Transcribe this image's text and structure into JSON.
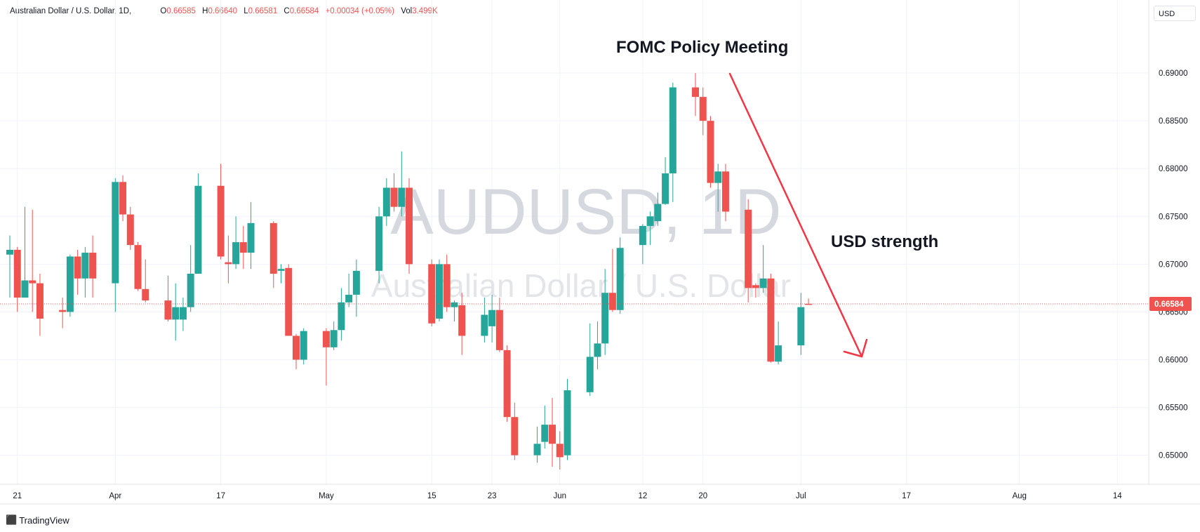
{
  "header": {
    "symbol": "Australian Dollar / U.S. Dollar, 1D,",
    "o_label": "O",
    "o_value": "0.66585",
    "h_label": "H",
    "h_value": "0.66640",
    "l_label": "L",
    "l_value": "0.66581",
    "c_label": "C",
    "c_value": "0.66584",
    "change": "+0.00034 (+0.05%)",
    "vol_label": "Vol",
    "vol_value": "3.499K"
  },
  "currency_button": "USD",
  "brand": "TradingView",
  "colors": {
    "up": "#26a69a",
    "down": "#ef5350",
    "annotation": "#f23645",
    "grid": "#f0f3fa",
    "watermark": "#d1d4dc"
  },
  "chart_data": {
    "type": "candlestick",
    "watermark": {
      "symbol": "AUDUSD, 1D",
      "description": "Australian Dollar / U.S. Dollar"
    },
    "last_price_label": "0.66584",
    "y_axis": {
      "range": [
        0.6488,
        0.6903
      ],
      "ticks": [
        "0.69000",
        "0.68500",
        "0.68000",
        "0.67500",
        "0.67000",
        "0.66500",
        "0.66000",
        "0.65500",
        "0.65000"
      ]
    },
    "x_axis": {
      "range": [
        "2023-03-20",
        "2023-08-15"
      ],
      "ticks": [
        {
          "label": "21",
          "date": "2023-03-21"
        },
        {
          "label": "Apr",
          "date": "2023-04-03"
        },
        {
          "label": "17",
          "date": "2023-04-17"
        },
        {
          "label": "May",
          "date": "2023-05-01"
        },
        {
          "label": "15",
          "date": "2023-05-15"
        },
        {
          "label": "23",
          "date": "2023-05-23"
        },
        {
          "label": "Jun",
          "date": "2023-06-01"
        },
        {
          "label": "12",
          "date": "2023-06-12"
        },
        {
          "label": "20",
          "date": "2023-06-20"
        },
        {
          "label": "Jul",
          "date": "2023-07-03"
        },
        {
          "label": "17",
          "date": "2023-07-17"
        },
        {
          "label": "Aug",
          "date": "2023-08-01"
        },
        {
          "label": "14",
          "date": "2023-08-14"
        }
      ]
    },
    "candles": [
      {
        "date": "2023-03-20",
        "o": 0.671,
        "h": 0.673,
        "l": 0.6665,
        "c": 0.6715
      },
      {
        "date": "2023-03-21",
        "o": 0.6715,
        "h": 0.6718,
        "l": 0.665,
        "c": 0.6665
      },
      {
        "date": "2023-03-22",
        "o": 0.6665,
        "h": 0.676,
        "l": 0.6665,
        "c": 0.6683
      },
      {
        "date": "2023-03-23",
        "o": 0.6683,
        "h": 0.6757,
        "l": 0.665,
        "c": 0.668
      },
      {
        "date": "2023-03-24",
        "o": 0.668,
        "h": 0.669,
        "l": 0.6625,
        "c": 0.6643
      },
      {
        "date": "2023-03-27",
        "o": 0.6652,
        "h": 0.6665,
        "l": 0.6633,
        "c": 0.665
      },
      {
        "date": "2023-03-28",
        "o": 0.665,
        "h": 0.671,
        "l": 0.6645,
        "c": 0.6708
      },
      {
        "date": "2023-03-29",
        "o": 0.6708,
        "h": 0.6715,
        "l": 0.6668,
        "c": 0.6685
      },
      {
        "date": "2023-03-30",
        "o": 0.6685,
        "h": 0.6718,
        "l": 0.6665,
        "c": 0.6712
      },
      {
        "date": "2023-03-31",
        "o": 0.6712,
        "h": 0.673,
        "l": 0.6665,
        "c": 0.6685
      },
      {
        "date": "2023-04-03",
        "o": 0.668,
        "h": 0.679,
        "l": 0.665,
        "c": 0.6786
      },
      {
        "date": "2023-04-04",
        "o": 0.6786,
        "h": 0.6793,
        "l": 0.6745,
        "c": 0.6752
      },
      {
        "date": "2023-04-05",
        "o": 0.6752,
        "h": 0.676,
        "l": 0.6715,
        "c": 0.672
      },
      {
        "date": "2023-04-06",
        "o": 0.672,
        "h": 0.6723,
        "l": 0.6672,
        "c": 0.6674
      },
      {
        "date": "2023-04-07",
        "o": 0.6674,
        "h": 0.6705,
        "l": 0.666,
        "c": 0.6662
      },
      {
        "date": "2023-04-10",
        "o": 0.6662,
        "h": 0.6688,
        "l": 0.664,
        "c": 0.6642
      },
      {
        "date": "2023-04-11",
        "o": 0.6642,
        "h": 0.668,
        "l": 0.662,
        "c": 0.6655
      },
      {
        "date": "2023-04-12",
        "o": 0.6642,
        "h": 0.6665,
        "l": 0.663,
        "c": 0.6655
      },
      {
        "date": "2023-04-13",
        "o": 0.6655,
        "h": 0.672,
        "l": 0.665,
        "c": 0.669
      },
      {
        "date": "2023-04-14",
        "o": 0.669,
        "h": 0.6795,
        "l": 0.669,
        "c": 0.6782
      },
      {
        "date": "2023-04-17",
        "o": 0.6782,
        "h": 0.6805,
        "l": 0.6705,
        "c": 0.6708
      },
      {
        "date": "2023-04-18",
        "o": 0.6702,
        "h": 0.673,
        "l": 0.668,
        "c": 0.67
      },
      {
        "date": "2023-04-19",
        "o": 0.67,
        "h": 0.675,
        "l": 0.6695,
        "c": 0.6723
      },
      {
        "date": "2023-04-20",
        "o": 0.6723,
        "h": 0.674,
        "l": 0.6695,
        "c": 0.6712
      },
      {
        "date": "2023-04-21",
        "o": 0.6712,
        "h": 0.6765,
        "l": 0.6695,
        "c": 0.6743
      },
      {
        "date": "2023-04-24",
        "o": 0.6743,
        "h": 0.6745,
        "l": 0.6675,
        "c": 0.669
      },
      {
        "date": "2023-04-25",
        "o": 0.6693,
        "h": 0.67,
        "l": 0.668,
        "c": 0.6695
      },
      {
        "date": "2023-04-26",
        "o": 0.6696,
        "h": 0.67,
        "l": 0.6625,
        "c": 0.6625
      },
      {
        "date": "2023-04-27",
        "o": 0.6625,
        "h": 0.6627,
        "l": 0.659,
        "c": 0.66
      },
      {
        "date": "2023-04-28",
        "o": 0.66,
        "h": 0.6633,
        "l": 0.6595,
        "c": 0.663
      },
      {
        "date": "2023-05-01",
        "o": 0.663,
        "h": 0.6633,
        "l": 0.6573,
        "c": 0.6613
      },
      {
        "date": "2023-05-02",
        "o": 0.6613,
        "h": 0.664,
        "l": 0.661,
        "c": 0.6631
      },
      {
        "date": "2023-05-03",
        "o": 0.6631,
        "h": 0.6675,
        "l": 0.662,
        "c": 0.666
      },
      {
        "date": "2023-05-04",
        "o": 0.666,
        "h": 0.669,
        "l": 0.6655,
        "c": 0.6668
      },
      {
        "date": "2023-05-05",
        "o": 0.6668,
        "h": 0.6705,
        "l": 0.6645,
        "c": 0.6693
      },
      {
        "date": "2023-05-08",
        "o": 0.6693,
        "h": 0.676,
        "l": 0.668,
        "c": 0.675
      },
      {
        "date": "2023-05-09",
        "o": 0.675,
        "h": 0.679,
        "l": 0.674,
        "c": 0.678
      },
      {
        "date": "2023-05-10",
        "o": 0.678,
        "h": 0.6795,
        "l": 0.6755,
        "c": 0.676
      },
      {
        "date": "2023-05-11",
        "o": 0.676,
        "h": 0.6818,
        "l": 0.675,
        "c": 0.678
      },
      {
        "date": "2023-05-12",
        "o": 0.678,
        "h": 0.679,
        "l": 0.669,
        "c": 0.67
      },
      {
        "date": "2023-05-15",
        "o": 0.67,
        "h": 0.6705,
        "l": 0.6635,
        "c": 0.6638
      },
      {
        "date": "2023-05-16",
        "o": 0.6643,
        "h": 0.6705,
        "l": 0.664,
        "c": 0.67
      },
      {
        "date": "2023-05-17",
        "o": 0.67,
        "h": 0.671,
        "l": 0.665,
        "c": 0.6655
      },
      {
        "date": "2023-05-18",
        "o": 0.6655,
        "h": 0.6662,
        "l": 0.664,
        "c": 0.666
      },
      {
        "date": "2023-05-19",
        "o": 0.6657,
        "h": 0.667,
        "l": 0.6605,
        "c": 0.6625
      },
      {
        "date": "2023-05-22",
        "o": 0.6625,
        "h": 0.6665,
        "l": 0.6618,
        "c": 0.6647
      },
      {
        "date": "2023-05-23",
        "o": 0.6635,
        "h": 0.6668,
        "l": 0.6618,
        "c": 0.6652
      },
      {
        "date": "2023-05-24",
        "o": 0.6652,
        "h": 0.6665,
        "l": 0.6608,
        "c": 0.661
      },
      {
        "date": "2023-05-25",
        "o": 0.661,
        "h": 0.6615,
        "l": 0.6535,
        "c": 0.654
      },
      {
        "date": "2023-05-26",
        "o": 0.654,
        "h": 0.6555,
        "l": 0.6495,
        "c": 0.65
      },
      {
        "date": "2023-05-29",
        "o": 0.65,
        "h": 0.653,
        "l": 0.6492,
        "c": 0.6512
      },
      {
        "date": "2023-05-30",
        "o": 0.6514,
        "h": 0.6552,
        "l": 0.6507,
        "c": 0.6532
      },
      {
        "date": "2023-05-31",
        "o": 0.6532,
        "h": 0.656,
        "l": 0.6488,
        "c": 0.6512
      },
      {
        "date": "2023-06-01",
        "o": 0.6512,
        "h": 0.6525,
        "l": 0.6485,
        "c": 0.6498
      },
      {
        "date": "2023-06-02",
        "o": 0.65,
        "h": 0.658,
        "l": 0.6495,
        "c": 0.6568
      },
      {
        "date": "2023-06-05",
        "o": 0.6566,
        "h": 0.6638,
        "l": 0.6562,
        "c": 0.6603
      },
      {
        "date": "2023-06-06",
        "o": 0.6603,
        "h": 0.664,
        "l": 0.659,
        "c": 0.6617
      },
      {
        "date": "2023-06-07",
        "o": 0.6617,
        "h": 0.6695,
        "l": 0.6605,
        "c": 0.667
      },
      {
        "date": "2023-06-08",
        "o": 0.667,
        "h": 0.6716,
        "l": 0.665,
        "c": 0.6652
      },
      {
        "date": "2023-06-09",
        "o": 0.6652,
        "h": 0.6728,
        "l": 0.6648,
        "c": 0.6717
      },
      {
        "date": "2023-06-12",
        "o": 0.672,
        "h": 0.6742,
        "l": 0.67,
        "c": 0.674
      },
      {
        "date": "2023-06-13",
        "o": 0.674,
        "h": 0.6755,
        "l": 0.672,
        "c": 0.675
      },
      {
        "date": "2023-06-14",
        "o": 0.6745,
        "h": 0.6775,
        "l": 0.674,
        "c": 0.6763
      },
      {
        "date": "2023-06-15",
        "o": 0.6763,
        "h": 0.6812,
        "l": 0.6762,
        "c": 0.6795
      },
      {
        "date": "2023-06-16",
        "o": 0.6795,
        "h": 0.689,
        "l": 0.6765,
        "c": 0.6885
      },
      {
        "date": "2023-06-19",
        "o": 0.6885,
        "h": 0.69,
        "l": 0.6855,
        "c": 0.6875
      },
      {
        "date": "2023-06-20",
        "o": 0.6875,
        "h": 0.6885,
        "l": 0.6835,
        "c": 0.685
      },
      {
        "date": "2023-06-21",
        "o": 0.685,
        "h": 0.6855,
        "l": 0.678,
        "c": 0.6785
      },
      {
        "date": "2023-06-22",
        "o": 0.6785,
        "h": 0.6805,
        "l": 0.6755,
        "c": 0.6797
      },
      {
        "date": "2023-06-23",
        "o": 0.6797,
        "h": 0.6805,
        "l": 0.6745,
        "c": 0.6755
      },
      {
        "date": "2023-06-26",
        "o": 0.6757,
        "h": 0.6768,
        "l": 0.666,
        "c": 0.6675
      },
      {
        "date": "2023-06-27",
        "o": 0.6678,
        "h": 0.668,
        "l": 0.6665,
        "c": 0.6675
      },
      {
        "date": "2023-06-28",
        "o": 0.6675,
        "h": 0.672,
        "l": 0.667,
        "c": 0.6685
      },
      {
        "date": "2023-06-29",
        "o": 0.6685,
        "h": 0.669,
        "l": 0.6597,
        "c": 0.6598
      },
      {
        "date": "2023-06-30",
        "o": 0.6598,
        "h": 0.664,
        "l": 0.6595,
        "c": 0.6615
      },
      {
        "date": "2023-07-03",
        "o": 0.6615,
        "h": 0.667,
        "l": 0.6605,
        "c": 0.6655
      },
      {
        "date": "2023-07-04",
        "o": 0.66585,
        "h": 0.6664,
        "l": 0.66581,
        "c": 0.66584
      }
    ],
    "annotations": [
      {
        "text": "FOMC Policy Meeting"
      },
      {
        "text": "USD strength"
      }
    ]
  }
}
